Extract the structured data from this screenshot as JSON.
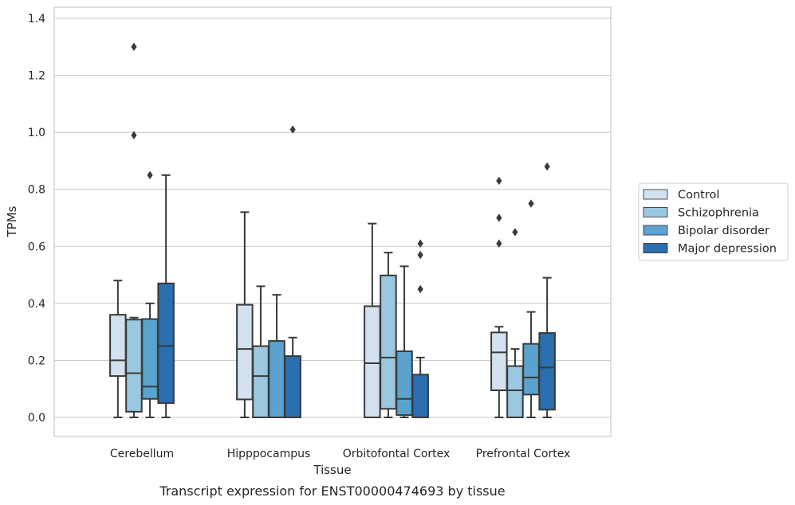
{
  "caption": "Transcript expression for ENST00000474693 by tissue",
  "chart_data": {
    "type": "box",
    "xlabel": "Tissue",
    "ylabel": "TPMs",
    "ylim": [
      -0.065,
      1.44
    ],
    "yticks": [
      "0.0",
      "0.2",
      "0.4",
      "0.6",
      "0.8",
      "1.0",
      "1.2",
      "1.4"
    ],
    "grid": "horizontal",
    "legend_position": "right",
    "categories": [
      "Cerebellum",
      "Hipppocampus",
      "Orbitofontal Cortex",
      "Prefrontal Cortex"
    ],
    "series": [
      {
        "name": "Control",
        "color": "#d1e1ef",
        "boxes": [
          {
            "whislo": 0.0,
            "q1": 0.145,
            "med": 0.2,
            "q3": 0.36,
            "whishi": 0.48,
            "fliers": []
          },
          {
            "whislo": 0.0,
            "q1": 0.063,
            "med": 0.24,
            "q3": 0.395,
            "whishi": 0.72,
            "fliers": []
          },
          {
            "whislo": 0.0,
            "q1": 0.0,
            "med": 0.19,
            "q3": 0.39,
            "whishi": 0.68,
            "fliers": []
          },
          {
            "whislo": 0.0,
            "q1": 0.095,
            "med": 0.228,
            "q3": 0.298,
            "whishi": 0.318,
            "fliers": [
              0.61,
              0.7,
              0.83
            ]
          }
        ]
      },
      {
        "name": "Schizophrenia",
        "color": "#9ac8e0",
        "boxes": [
          {
            "whislo": 0.0,
            "q1": 0.02,
            "med": 0.155,
            "q3": 0.343,
            "whishi": 0.35,
            "fliers": [
              0.99,
              1.3
            ]
          },
          {
            "whislo": 0.0,
            "q1": 0.0,
            "med": 0.145,
            "q3": 0.25,
            "whishi": 0.46,
            "fliers": []
          },
          {
            "whislo": 0.0,
            "q1": 0.03,
            "med": 0.21,
            "q3": 0.498,
            "whishi": 0.578,
            "fliers": []
          },
          {
            "whislo": 0.0,
            "q1": 0.0,
            "med": 0.095,
            "q3": 0.18,
            "whishi": 0.24,
            "fliers": [
              0.65
            ]
          }
        ]
      },
      {
        "name": "Bipolar disorder",
        "color": "#5ba3cf",
        "boxes": [
          {
            "whislo": 0.0,
            "q1": 0.065,
            "med": 0.108,
            "q3": 0.345,
            "whishi": 0.4,
            "fliers": [
              0.85
            ]
          },
          {
            "whislo": 0.0,
            "q1": 0.0,
            "med": 0.0,
            "q3": 0.268,
            "whishi": 0.43,
            "fliers": []
          },
          {
            "whislo": 0.0,
            "q1": 0.008,
            "med": 0.065,
            "q3": 0.232,
            "whishi": 0.53,
            "fliers": []
          },
          {
            "whislo": 0.0,
            "q1": 0.08,
            "med": 0.14,
            "q3": 0.258,
            "whishi": 0.37,
            "fliers": [
              0.75
            ]
          }
        ]
      },
      {
        "name": "Major depression",
        "color": "#2a6fb0",
        "boxes": [
          {
            "whislo": 0.0,
            "q1": 0.05,
            "med": 0.25,
            "q3": 0.47,
            "whishi": 0.85,
            "fliers": []
          },
          {
            "whislo": 0.0,
            "q1": 0.0,
            "med": 0.0,
            "q3": 0.215,
            "whishi": 0.28,
            "fliers": [
              1.01
            ]
          },
          {
            "whislo": 0.0,
            "q1": 0.0,
            "med": 0.0,
            "q3": 0.15,
            "whishi": 0.21,
            "fliers": [
              0.45,
              0.57,
              0.61
            ]
          },
          {
            "whislo": 0.0,
            "q1": 0.027,
            "med": 0.175,
            "q3": 0.296,
            "whishi": 0.49,
            "fliers": [
              0.88
            ]
          }
        ]
      }
    ]
  }
}
